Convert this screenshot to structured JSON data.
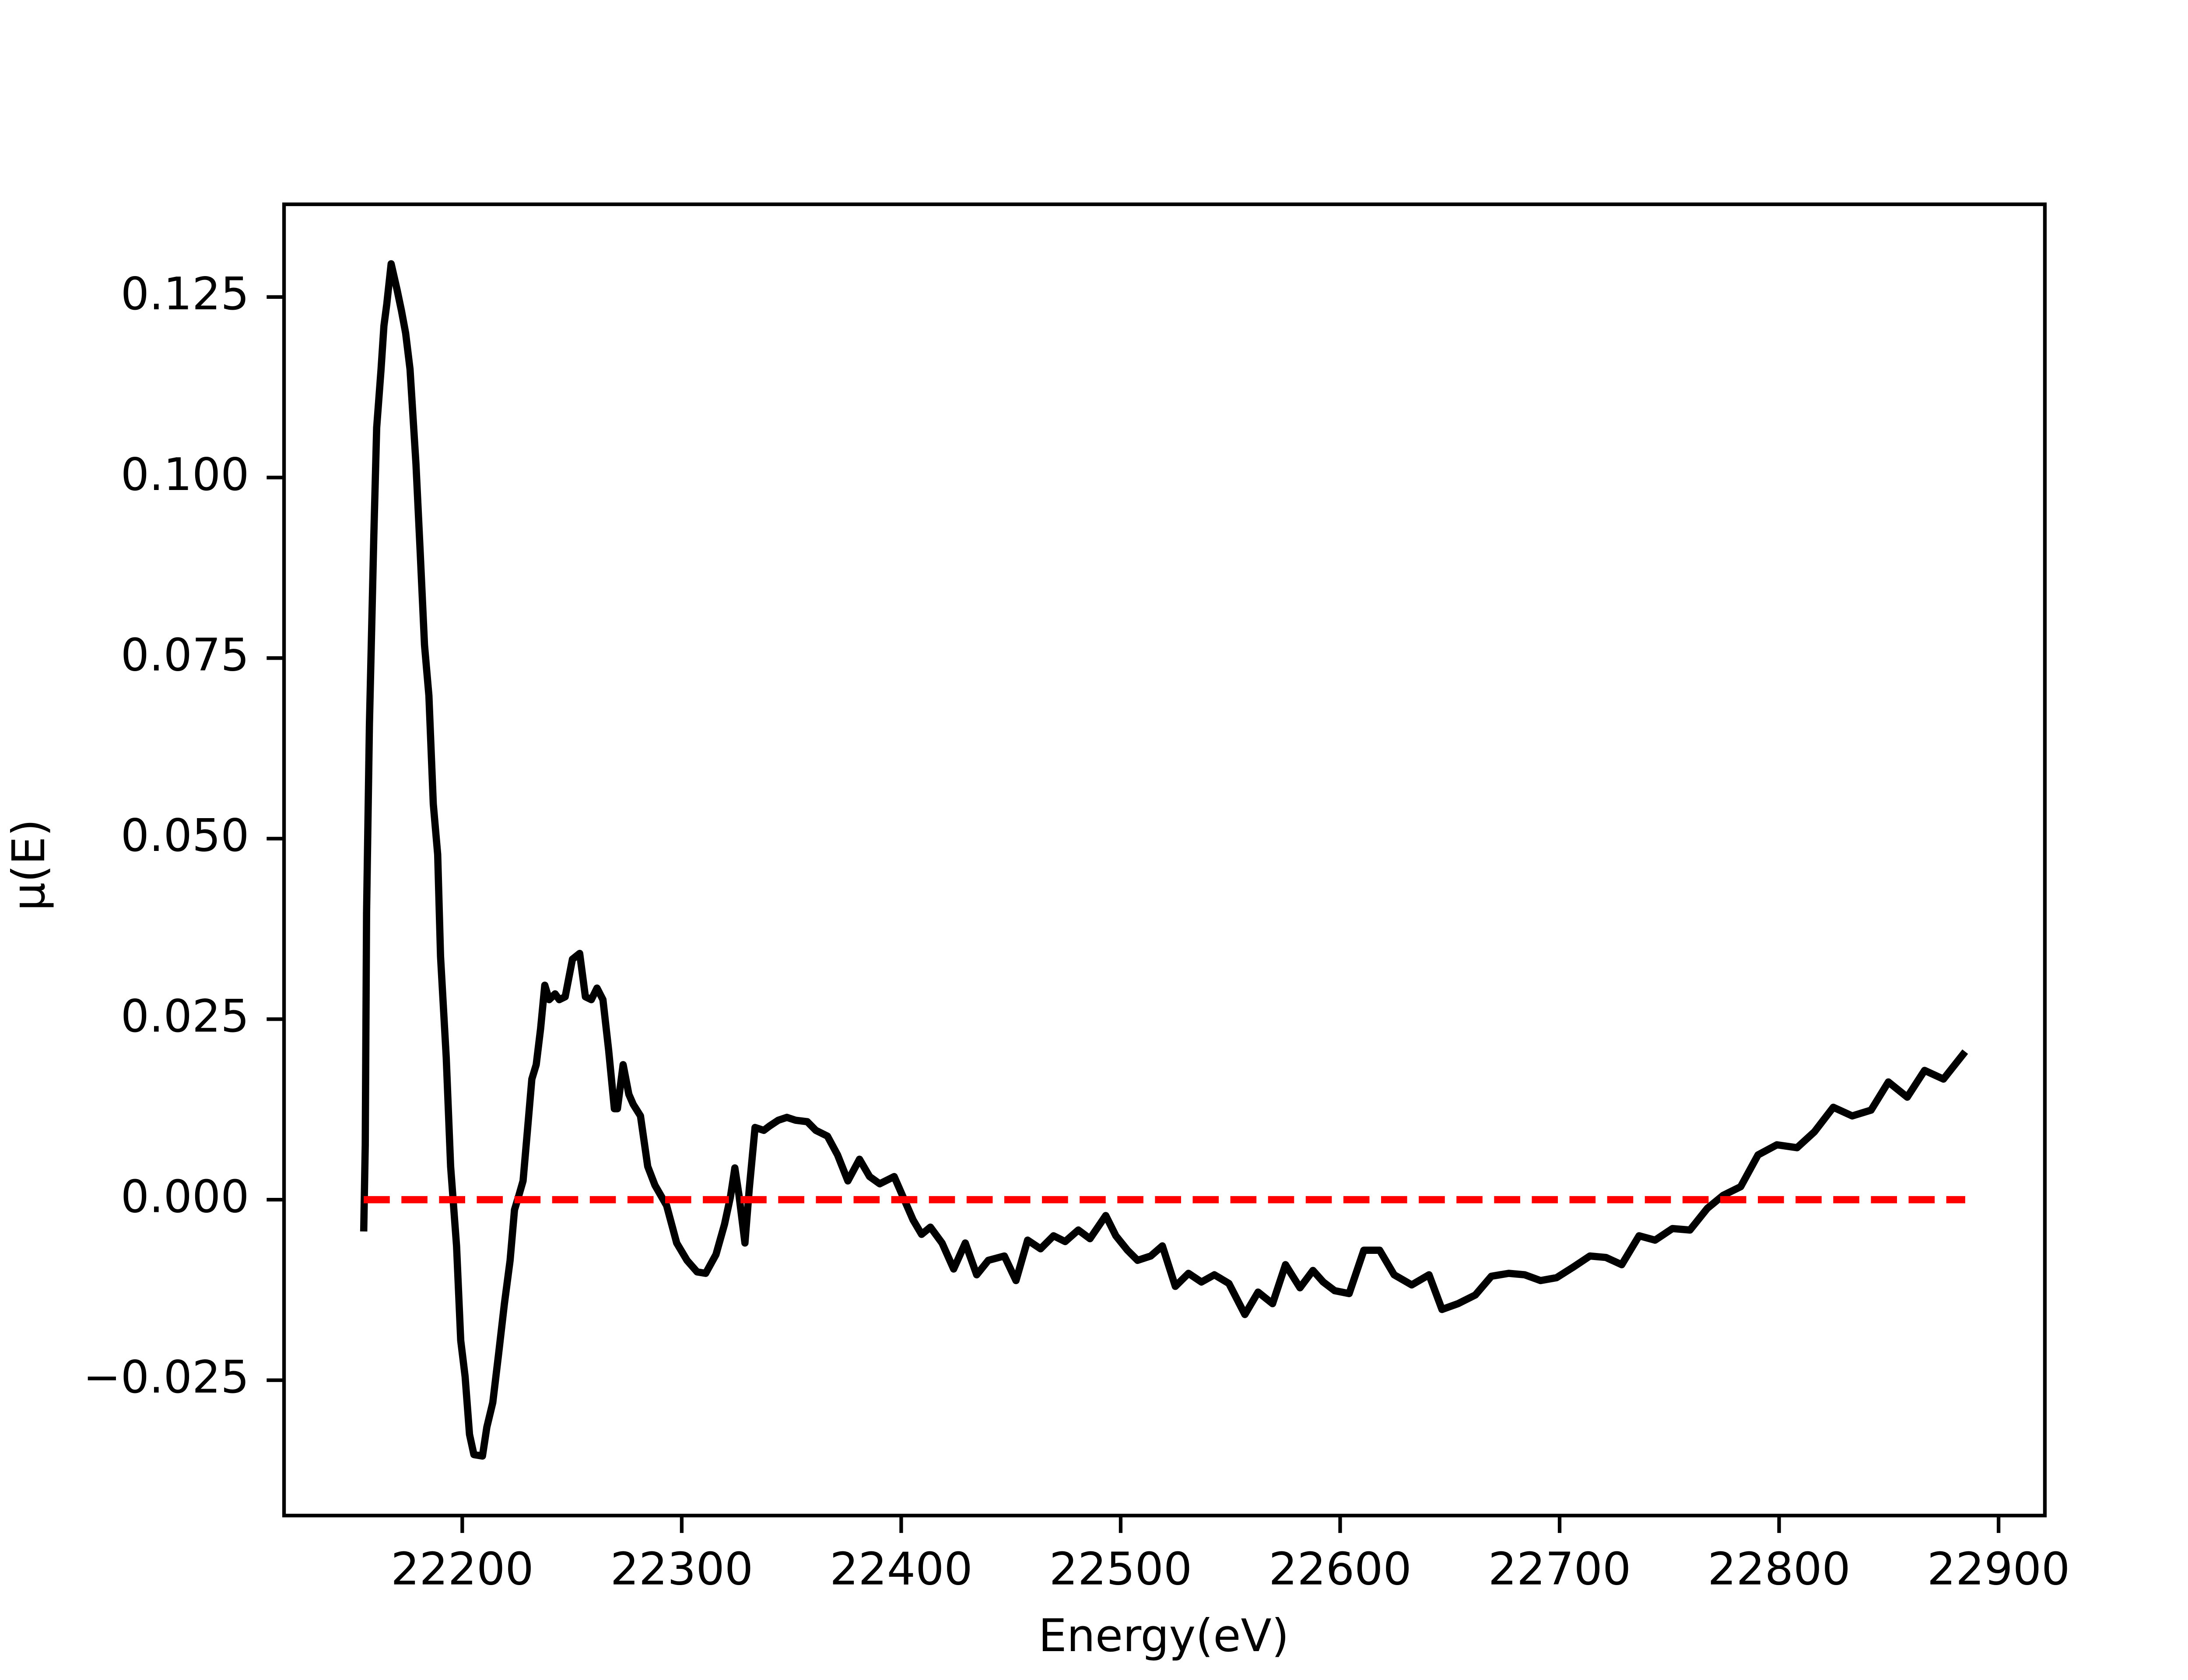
{
  "chart_data": {
    "type": "line",
    "xlabel": "Energy(eV)",
    "ylabel": "μ(E)",
    "xlim": [
      22118.8,
      22921.1
    ],
    "ylim": [
      -0.04374,
      0.13784
    ],
    "xticks": [
      22200,
      22300,
      22400,
      22500,
      22600,
      22700,
      22800,
      22900
    ],
    "yticks": [
      {
        "value": -0.025,
        "label": "−0.025"
      },
      {
        "value": 0,
        "label": "0.000"
      },
      0.025,
      {
        "value": 0.05,
        "label": "0.050"
      },
      0.075,
      {
        "value": 0.1,
        "label": "0.100"
      },
      0.125
    ],
    "grid": false,
    "series": [
      {
        "color": "#000000",
        "linestyle": "solid",
        "x": [
          22155.1,
          22155.8,
          22156.4,
          22157.7,
          22159.7,
          22161.0,
          22163.0,
          22164.3,
          22165.6,
          22167.6,
          22170.3,
          22172.3,
          22174.2,
          22176.2,
          22178.9,
          22180.8,
          22182.8,
          22184.8,
          22186.8,
          22188.8,
          22190.1,
          22192.7,
          22194.7,
          22197.4,
          22199.3,
          22201.3,
          22203.3,
          22205.3,
          22209.2,
          22211.2,
          22213.9,
          22216.5,
          22219.2,
          22221.8,
          22223.8,
          22225.8,
          22227.7,
          22229.7,
          22231.7,
          22233.7,
          22235.7,
          22237.6,
          22239.6,
          22242.3,
          22244.2,
          22246.9,
          22250.2,
          22253.5,
          22256.1,
          22258.8,
          22261.4,
          22264.1,
          22266.7,
          22269.3,
          22270.7,
          22273.3,
          22275.9,
          22277.9,
          22281.2,
          22284.5,
          22287.8,
          22293.1,
          22297.7,
          22302.4,
          22307.0,
          22310.9,
          22315.6,
          22319.5,
          22322.2,
          22324.2,
          22326.1,
          22328.8,
          22330.8,
          22333.4,
          22337.4,
          22340.0,
          22344.0,
          22347.9,
          22351.9,
          22357.2,
          22361.1,
          22366.4,
          22371.0,
          22375.7,
          22381.0,
          22385.6,
          22390.2,
          22396.8,
          22401.4,
          22405.4,
          22409.3,
          22413.3,
          22418.6,
          22423.9,
          22429.2,
          22434.4,
          22439.7,
          22447.0,
          22452.3,
          22457.6,
          22463.5,
          22469.4,
          22474.7,
          22480.7,
          22486.0,
          22493.2,
          22497.8,
          22503.1,
          22507.7,
          22513.7,
          22519.0,
          22524.9,
          22530.9,
          22536.8,
          22542.7,
          22549.3,
          22556.6,
          22562.6,
          22569.2,
          22575.1,
          22581.7,
          22587.6,
          22592.3,
          22597.5,
          22604.1,
          22610.8,
          22618.0,
          22624.6,
          22632.6,
          22640.5,
          22646.4,
          22653.7,
          22661.6,
          22668.9,
          22676.8,
          22684.1,
          22691.3,
          22698.6,
          22705.9,
          22713.8,
          22721.1,
          22728.3,
          22736.2,
          22743.5,
          22751.4,
          22759.4,
          22767.3,
          22774.5,
          22782.5,
          22790.4,
          22799.0,
          22808.2,
          22816.1,
          22824.7,
          22833.3,
          22841.9,
          22849.8,
          22858.4,
          22866.3,
          22874.9,
          22884.8
        ],
        "values": [
          -0.0044,
          0.0076,
          0.0397,
          0.0658,
          0.0919,
          0.1069,
          0.115,
          0.121,
          0.124,
          0.1296,
          0.126,
          0.1231,
          0.12,
          0.115,
          0.1019,
          0.0899,
          0.0768,
          0.0698,
          0.0548,
          0.0478,
          0.0337,
          0.0197,
          0.0046,
          -0.0064,
          -0.0195,
          -0.0245,
          -0.0325,
          -0.0353,
          -0.0355,
          -0.0315,
          -0.0281,
          -0.0215,
          -0.0144,
          -0.0084,
          -0.0014,
          0.0006,
          0.0026,
          0.0096,
          0.0167,
          0.0187,
          0.0237,
          0.0297,
          0.0277,
          0.0285,
          0.0277,
          0.0281,
          0.0333,
          0.0341,
          0.0281,
          0.0277,
          0.0293,
          0.0277,
          0.0207,
          0.0126,
          0.0126,
          0.0187,
          0.0146,
          0.0132,
          0.0116,
          0.0046,
          0.002,
          -0.0008,
          -0.006,
          -0.0084,
          -0.01,
          -0.0102,
          -0.0076,
          -0.0034,
          0.0004,
          0.0044,
          0.0006,
          -0.006,
          0.0016,
          0.01,
          0.0096,
          0.0102,
          0.011,
          0.0114,
          0.011,
          0.0108,
          0.0096,
          0.0088,
          0.0062,
          0.0026,
          0.0056,
          0.0032,
          0.0022,
          0.0032,
          0.0,
          -0.0028,
          -0.0048,
          -0.0038,
          -0.006,
          -0.0096,
          -0.006,
          -0.0104,
          -0.0084,
          -0.0078,
          -0.0112,
          -0.0056,
          -0.0068,
          -0.005,
          -0.0058,
          -0.0042,
          -0.0054,
          -0.0022,
          -0.005,
          -0.007,
          -0.0084,
          -0.0078,
          -0.0064,
          -0.012,
          -0.0102,
          -0.0114,
          -0.0104,
          -0.0116,
          -0.0159,
          -0.0128,
          -0.0144,
          -0.009,
          -0.0122,
          -0.0098,
          -0.0114,
          -0.0126,
          -0.013,
          -0.007,
          -0.007,
          -0.0104,
          -0.0118,
          -0.0104,
          -0.0152,
          -0.0144,
          -0.0132,
          -0.0106,
          -0.0102,
          -0.0104,
          -0.0112,
          -0.0108,
          -0.0094,
          -0.0078,
          -0.008,
          -0.009,
          -0.005,
          -0.0056,
          -0.004,
          -0.0042,
          -0.0012,
          0.0006,
          0.0018,
          0.0062,
          0.0076,
          0.0072,
          0.0094,
          0.0128,
          0.0116,
          0.0124,
          0.0163,
          0.0142,
          0.0179,
          0.0167,
          0.0205
        ]
      },
      {
        "color": "#ff0000",
        "linestyle": "dashed",
        "x": [
          22155.1,
          22884.8
        ],
        "values": [
          0,
          0
        ]
      }
    ]
  }
}
